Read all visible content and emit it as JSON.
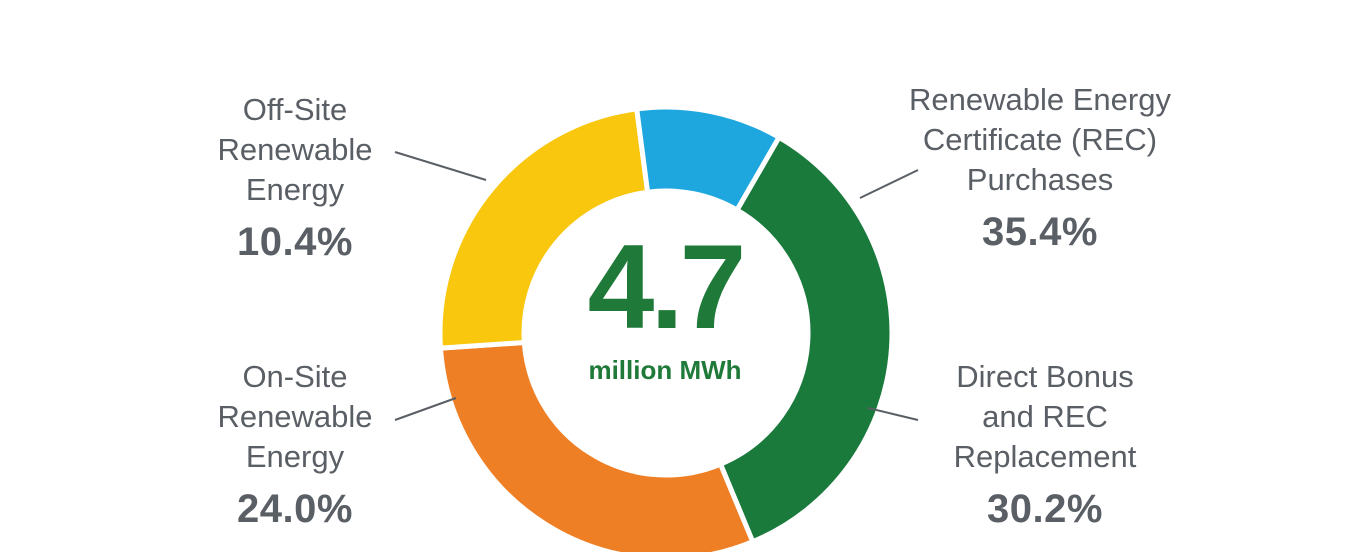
{
  "chart_data": {
    "type": "pie",
    "center_value": "4.7",
    "center_unit": "million MWh",
    "slices": [
      {
        "label": "Renewable Energy Certificate (REC) Purchases",
        "display": "Renewable Energy\nCertificate (REC)\nPurchases",
        "value": 35.4,
        "value_label": "35.4%",
        "color": "#1a7a3c"
      },
      {
        "label": "Direct Bonus and REC Replacement",
        "display": "Direct Bonus\nand REC\nReplacement",
        "value": 30.2,
        "value_label": "30.2%",
        "color": "#ef7f24"
      },
      {
        "label": "On-Site Renewable Energy",
        "display": "On-Site\nRenewable\nEnergy",
        "value": 24.0,
        "value_label": "24.0%",
        "color": "#f8c70e"
      },
      {
        "label": "Off-Site Renewable Energy",
        "display": "Off-Site\nRenewable\nEnergy",
        "value": 10.4,
        "value_label": "10.4%",
        "color": "#1ea6df"
      }
    ]
  }
}
